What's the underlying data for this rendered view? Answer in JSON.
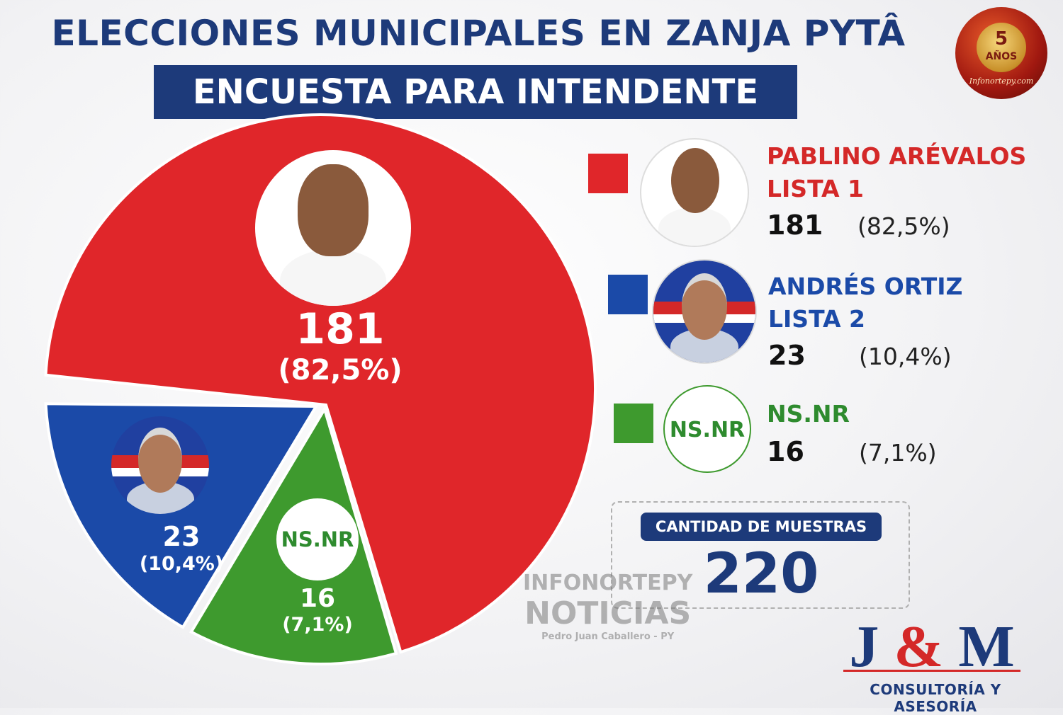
{
  "header": {
    "title": "ELECCIONES MUNICIPALES EN ZANJA PYTÂ",
    "subtitle": "ENCUESTA PARA INTENDENTE"
  },
  "badge": {
    "number": "5",
    "word": "AÑOS",
    "site": "Infonortepy.com"
  },
  "colors": {
    "red": "#e0262a",
    "blue": "#1b4aa8",
    "green": "#3e9a2e",
    "navy": "#1d3a7a"
  },
  "chart_data": {
    "type": "pie",
    "slices": [
      {
        "name": "PABLINO ARÉVALOS",
        "list": "LISTA 1",
        "value": 181,
        "percent_label": "(82,5%)",
        "color": "#e0262a"
      },
      {
        "name": "ANDRÉS ORTIZ",
        "list": "LISTA 2",
        "value": 23,
        "percent_label": "(10,4%)",
        "color": "#1b4aa8"
      },
      {
        "name": "NS.NR",
        "list": "",
        "value": 16,
        "percent_label": "(7,1%)",
        "color": "#3e9a2e"
      }
    ]
  },
  "pie_labels": {
    "red_value": "181",
    "red_pct": "(82,5%)",
    "blue_value": "23",
    "blue_pct": "(10,4%)",
    "green_value": "16",
    "green_pct": "(7,1%)",
    "nsnr_badge": "NS.NR"
  },
  "legend": [
    {
      "name": "PABLINO ARÉVALOS",
      "list": "LISTA 1",
      "count": "181",
      "pct": "(82,5%)",
      "color": "#e0262a"
    },
    {
      "name": "ANDRÉS ORTIZ",
      "list": "LISTA 2",
      "count": "23",
      "pct": "(10,4%)",
      "color": "#1b4aa8"
    },
    {
      "name": "NS.NR",
      "list": "",
      "count": "16",
      "pct": "(7,1%)",
      "color": "#3e9a2e",
      "badge": "NS.NR"
    }
  ],
  "samples": {
    "label": "CANTIDAD DE MUESTRAS",
    "value": "220"
  },
  "watermark": {
    "line1": "INFONORTEPY",
    "line2": "NOTICIAS",
    "line3": "Pedro Juan Caballero - PY"
  },
  "brand": {
    "j": "J",
    "amp": "&",
    "m": "M",
    "tagline": "CONSULTORÍA Y ASESORÍA"
  }
}
